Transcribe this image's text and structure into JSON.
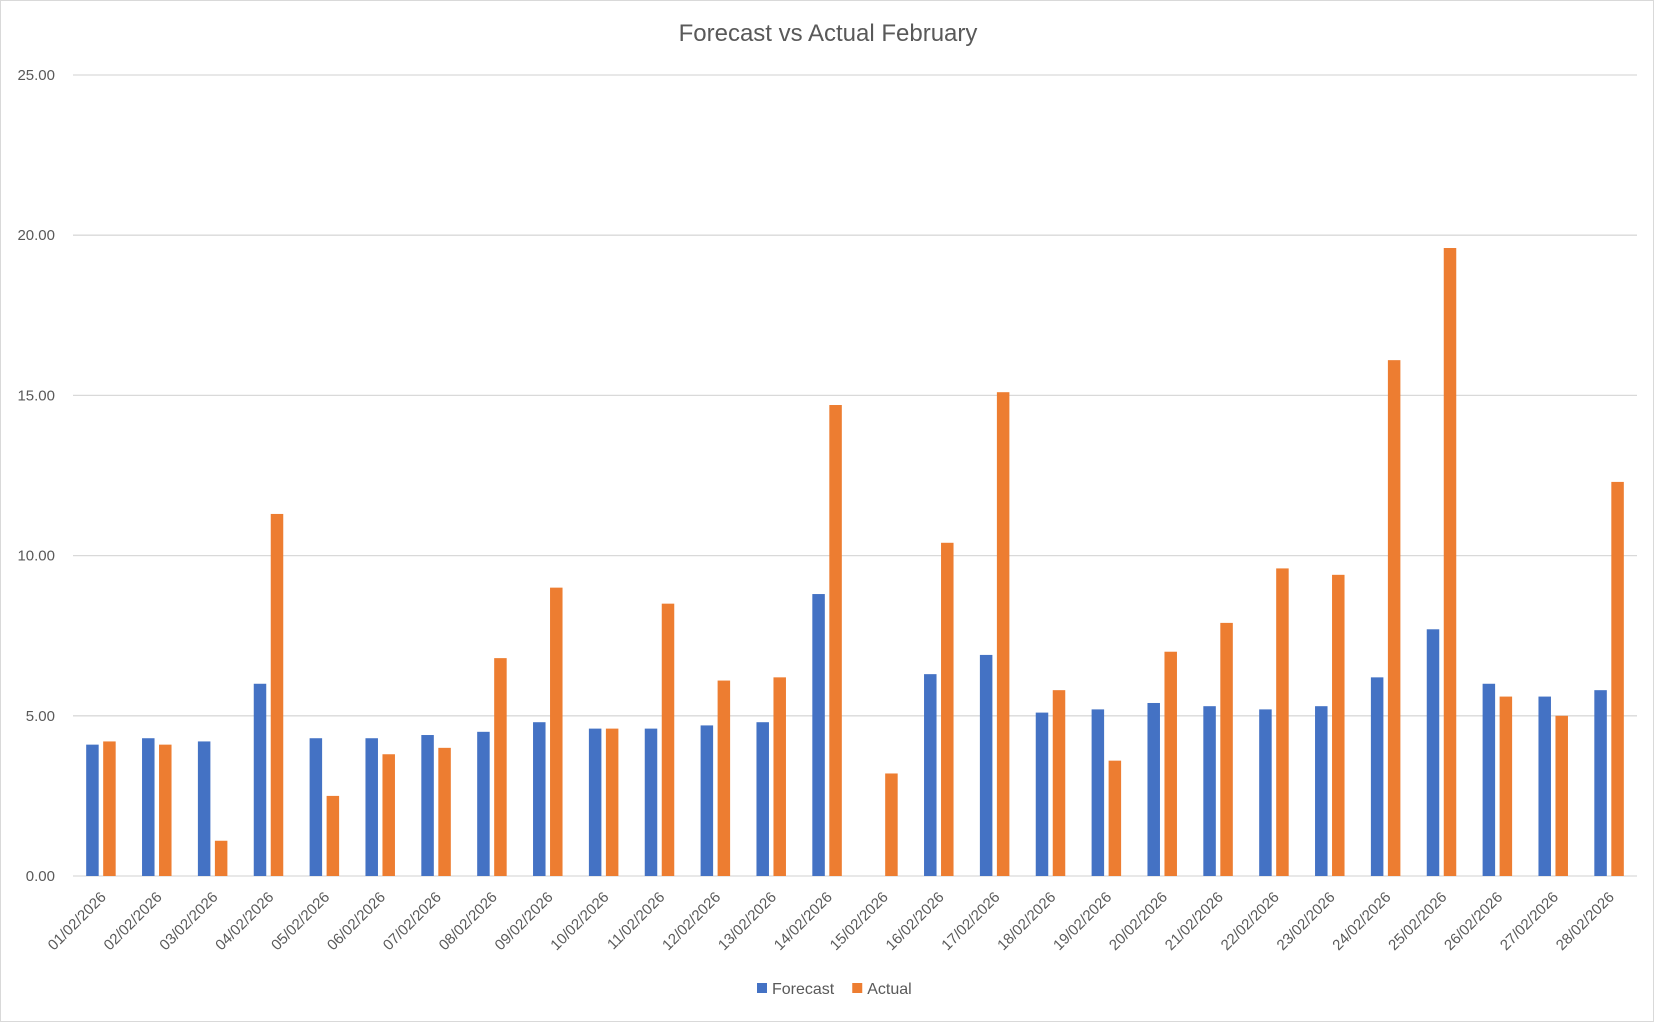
{
  "chart_data": {
    "type": "bar",
    "title": "Forecast vs Actual February",
    "xlabel": "",
    "ylabel": "",
    "ylim": [
      0,
      25
    ],
    "yticks": [
      "0.00",
      "5.00",
      "10.00",
      "15.00",
      "20.00",
      "25.00"
    ],
    "grid": true,
    "legend_position": "bottom",
    "categories": [
      "01/02/2026",
      "02/02/2026",
      "03/02/2026",
      "04/02/2026",
      "05/02/2026",
      "06/02/2026",
      "07/02/2026",
      "08/02/2026",
      "09/02/2026",
      "10/02/2026",
      "11/02/2026",
      "12/02/2026",
      "13/02/2026",
      "14/02/2026",
      "15/02/2026",
      "16/02/2026",
      "17/02/2026",
      "18/02/2026",
      "19/02/2026",
      "20/02/2026",
      "21/02/2026",
      "22/02/2026",
      "23/02/2026",
      "24/02/2026",
      "25/02/2026",
      "26/02/2026",
      "27/02/2026",
      "28/02/2026"
    ],
    "series": [
      {
        "name": "Forecast",
        "color": "#4472C4",
        "values": [
          4.1,
          4.3,
          4.2,
          6.0,
          4.3,
          4.3,
          4.4,
          4.5,
          4.8,
          4.6,
          4.6,
          4.7,
          4.8,
          8.8,
          0,
          6.3,
          6.9,
          5.1,
          5.2,
          5.4,
          5.3,
          5.2,
          5.3,
          6.2,
          7.7,
          6.0,
          5.6,
          5.8
        ]
      },
      {
        "name": "Actual",
        "color": "#ED7D31",
        "values": [
          4.2,
          4.1,
          1.1,
          11.3,
          2.5,
          3.8,
          4.0,
          6.8,
          9.0,
          4.6,
          8.5,
          6.1,
          6.2,
          14.7,
          3.2,
          10.4,
          15.1,
          5.8,
          3.6,
          7.0,
          7.9,
          9.6,
          9.4,
          16.1,
          19.6,
          5.6,
          5.0,
          12.3
        ]
      }
    ]
  }
}
